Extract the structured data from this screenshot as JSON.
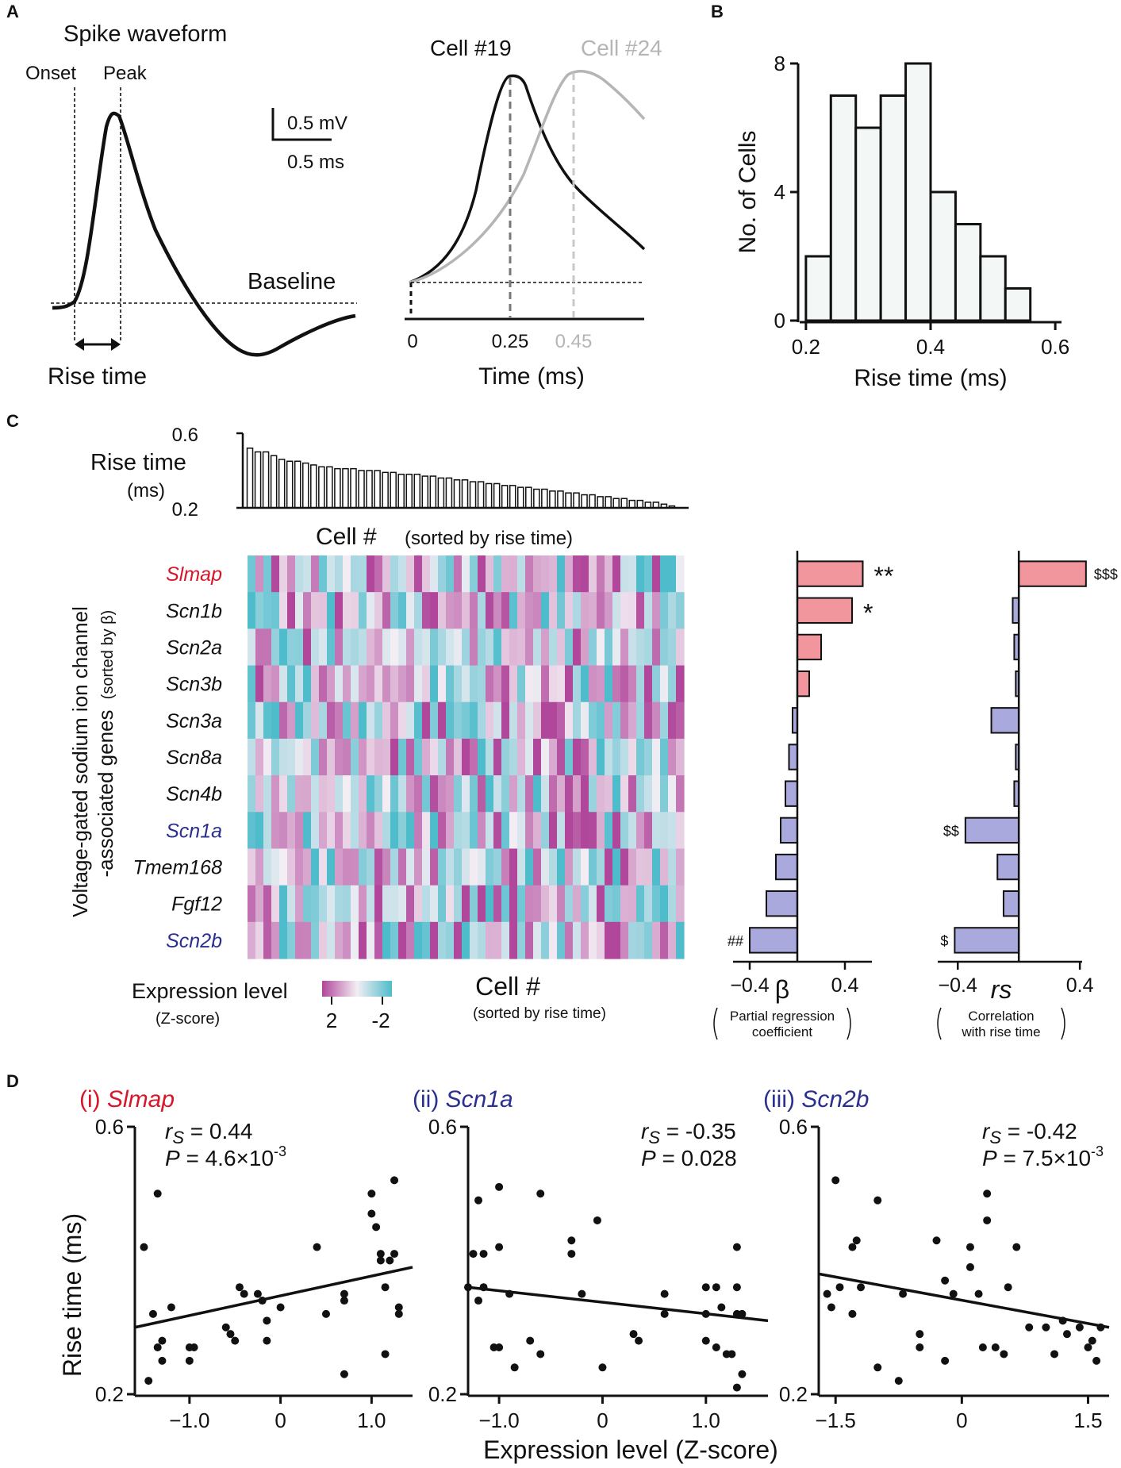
{
  "panels": {
    "A": {
      "letter": "A",
      "title": "Spike waveform",
      "onset_label": "Onset",
      "peak_label": "Peak",
      "baseline_label": "Baseline",
      "rise_time_label": "Rise time",
      "scale_voltage": "0.5 mV",
      "scale_time": "0.5 ms",
      "cell1_label": "Cell #19",
      "cell2_label": "Cell #24",
      "cell1_color": "#111111",
      "cell2_color": "#b5b5b5",
      "time_ticks": [
        "0",
        "0.25",
        "0.45"
      ],
      "time_xlabel": "Time (ms)"
    },
    "B": {
      "letter": "B"
    },
    "C": {
      "letter": "C",
      "bar_ylabel_1": "Rise time",
      "bar_ylabel_2": "(ms)",
      "bar_yticks": [
        "0.6",
        "0.2"
      ],
      "cell_label_top": "Cell #",
      "cell_label_top_sub": "(sorted by rise time)",
      "cell_label_bottom": "Cell #",
      "cell_label_bottom_sub": "(sorted by rise time)",
      "gene_axis_1": "Voltage-gated sodium ion channel",
      "gene_axis_2": "-associated genes",
      "gene_axis_sub": "(sorted by β)",
      "legend_title": "Expression level",
      "legend_sub": "(Z-score)",
      "legend_high": "2",
      "legend_low": "-2",
      "beta_xlabel": "β",
      "beta_caption_1": "Partial regression",
      "beta_caption_2": "coefficient",
      "rs_xlabel": "rs",
      "rs_caption_1": "Correlation",
      "rs_caption_2": "with rise time",
      "pos_color": "#f2969e",
      "neg_color": "#a9a9dd",
      "heat_high_color": "#b0479b",
      "heat_low_color": "#4fbccb"
    },
    "D": {
      "letter": "D",
      "ylabel": "Rise time (ms)",
      "xlabel": "Expression level (Z-score)"
    }
  },
  "chart_data": [
    {
      "id": "B",
      "type": "bar",
      "xlabel": "Rise time (ms)",
      "ylabel": "No. of Cells",
      "bin_edges": [
        0.2,
        0.24,
        0.28,
        0.32,
        0.36,
        0.4,
        0.44,
        0.48,
        0.52,
        0.56
      ],
      "values": [
        2,
        7,
        6,
        7,
        8,
        4,
        3,
        2,
        1
      ],
      "xlim": [
        0.19,
        0.61
      ],
      "ylim": [
        0,
        8
      ],
      "xticks": [
        0.2,
        0.4,
        0.6
      ],
      "yticks": [
        0,
        4,
        8
      ],
      "bar_fill": "#f3f7f5"
    },
    {
      "id": "C-bars",
      "type": "bar",
      "ylabel": "Rise time (ms)",
      "ylim": [
        0.2,
        0.6
      ],
      "values": [
        0.52,
        0.5,
        0.5,
        0.48,
        0.46,
        0.45,
        0.45,
        0.44,
        0.43,
        0.42,
        0.42,
        0.41,
        0.41,
        0.41,
        0.4,
        0.4,
        0.4,
        0.39,
        0.39,
        0.38,
        0.38,
        0.38,
        0.37,
        0.37,
        0.36,
        0.36,
        0.35,
        0.35,
        0.34,
        0.34,
        0.33,
        0.33,
        0.32,
        0.32,
        0.31,
        0.31,
        0.3,
        0.3,
        0.29,
        0.29,
        0.28,
        0.28,
        0.27,
        0.27,
        0.26,
        0.26,
        0.25,
        0.25,
        0.24,
        0.24,
        0.23,
        0.23,
        0.22,
        0.21,
        0.2
      ]
    },
    {
      "id": "C-heatmap",
      "type": "heatmap",
      "genes": [
        "Slmap",
        "Scn1b",
        "Scn2a",
        "Scn3b",
        "Scn3a",
        "Scn8a",
        "Scn4b",
        "Scn1a",
        "Tmem168",
        "Fgf12",
        "Scn2b"
      ],
      "gene_colors": [
        "#d7162a",
        "#111111",
        "#111111",
        "#111111",
        "#111111",
        "#111111",
        "#111111",
        "#2b2f8f",
        "#111111",
        "#111111",
        "#2b2f8f"
      ],
      "n_cells": 55,
      "zlim": [
        -2,
        2
      ],
      "seeds": [
        11,
        23,
        37,
        41,
        53,
        67,
        71,
        83,
        97,
        101,
        113
      ]
    },
    {
      "id": "C-beta",
      "type": "bar",
      "orientation": "horizontal",
      "categories": [
        "Slmap",
        "Scn1b",
        "Scn2a",
        "Scn3b",
        "Scn3a",
        "Scn8a",
        "Scn4b",
        "Scn1a",
        "Tmem168",
        "Fgf12",
        "Scn2b"
      ],
      "values": [
        0.55,
        0.46,
        0.2,
        0.1,
        -0.04,
        -0.07,
        -0.1,
        -0.14,
        -0.18,
        -0.26,
        -0.4
      ],
      "annotations": [
        "**",
        "*",
        "",
        "",
        "",
        "",
        "",
        "",
        "",
        "",
        "##"
      ],
      "xlim": [
        -0.5,
        0.8
      ],
      "xticks": [
        "−0.4",
        "0.4"
      ]
    },
    {
      "id": "C-rs",
      "type": "bar",
      "orientation": "horizontal",
      "categories": [
        "Slmap",
        "Scn1b",
        "Scn2a",
        "Scn3b",
        "Scn3a",
        "Scn8a",
        "Scn4b",
        "Scn1a",
        "Tmem168",
        "Fgf12",
        "Scn2b"
      ],
      "values": [
        0.44,
        -0.04,
        -0.03,
        -0.02,
        -0.18,
        -0.02,
        -0.03,
        -0.35,
        -0.14,
        -0.1,
        -0.42
      ],
      "annotations": [
        "$$$",
        "",
        "",
        "",
        "",
        "",
        "",
        "$$",
        "",
        "",
        "$"
      ],
      "xlim": [
        -0.5,
        0.55
      ],
      "xticks": [
        "−0.4",
        "0.4"
      ]
    },
    {
      "id": "D-i",
      "type": "scatter",
      "title_prefix": "(i) ",
      "gene": "Slmap",
      "gene_color": "#d7162a",
      "rs_text": "= 0.44",
      "p_text": "= 4.6×10",
      "p_exp": "-3",
      "xlim": [
        -1.6,
        1.45
      ],
      "ylim": [
        0.2,
        0.6
      ],
      "xticks": [
        -1.0,
        0.0,
        1.0
      ],
      "xtick_labels": [
        "−1.0",
        "0",
        "1.0"
      ],
      "yticks": [
        "0.6",
        "0.2"
      ],
      "fit": [
        [
          -1.6,
          0.3
        ],
        [
          1.45,
          0.39
        ]
      ],
      "points": [
        [
          -1.5,
          0.42
        ],
        [
          -1.4,
          0.32
        ],
        [
          -1.35,
          0.27
        ],
        [
          -1.3,
          0.28
        ],
        [
          -1.45,
          0.22
        ],
        [
          -1.3,
          0.25
        ],
        [
          -1.2,
          0.33
        ],
        [
          -1.0,
          0.27
        ],
        [
          -0.95,
          0.27
        ],
        [
          -1.0,
          0.25
        ],
        [
          -0.6,
          0.3
        ],
        [
          -0.55,
          0.29
        ],
        [
          -0.5,
          0.28
        ],
        [
          -0.45,
          0.36
        ],
        [
          -0.4,
          0.35
        ],
        [
          -0.25,
          0.35
        ],
        [
          -0.2,
          0.34
        ],
        [
          -0.15,
          0.31
        ],
        [
          -0.15,
          0.28
        ],
        [
          0.0,
          0.33
        ],
        [
          0.4,
          0.42
        ],
        [
          0.5,
          0.32
        ],
        [
          0.7,
          0.35
        ],
        [
          0.7,
          0.34
        ],
        [
          0.7,
          0.23
        ],
        [
          1.0,
          0.5
        ],
        [
          1.0,
          0.47
        ],
        [
          1.05,
          0.45
        ],
        [
          1.1,
          0.41
        ],
        [
          1.1,
          0.4
        ],
        [
          1.15,
          0.36
        ],
        [
          1.2,
          0.4
        ],
        [
          1.25,
          0.41
        ],
        [
          1.3,
          0.33
        ],
        [
          1.3,
          0.32
        ],
        [
          1.15,
          0.26
        ],
        [
          1.25,
          0.52
        ],
        [
          -1.35,
          0.5
        ]
      ]
    },
    {
      "id": "D-ii",
      "type": "scatter",
      "title_prefix": "(ii) ",
      "gene": "Scn1a",
      "gene_color": "#2b2f8f",
      "rs_text": "= -0.35",
      "p_text": "= 0.028",
      "p_exp": "",
      "xlim": [
        -1.3,
        1.6
      ],
      "ylim": [
        0.2,
        0.6
      ],
      "xticks": [
        -1.0,
        0.0,
        1.0
      ],
      "xtick_labels": [
        "−1.0",
        "0",
        "1.0"
      ],
      "yticks": [
        "0.6",
        "0.2"
      ],
      "fit": [
        [
          -1.3,
          0.36
        ],
        [
          1.6,
          0.31
        ]
      ],
      "points": [
        [
          -1.3,
          0.36
        ],
        [
          -1.25,
          0.41
        ],
        [
          -1.2,
          0.49
        ],
        [
          -1.15,
          0.41
        ],
        [
          -1.15,
          0.36
        ],
        [
          -1.2,
          0.34
        ],
        [
          -1.0,
          0.42
        ],
        [
          -1.0,
          0.51
        ],
        [
          -1.05,
          0.27
        ],
        [
          -1.0,
          0.27
        ],
        [
          -0.9,
          0.35
        ],
        [
          -0.85,
          0.24
        ],
        [
          -0.7,
          0.28
        ],
        [
          -0.6,
          0.26
        ],
        [
          -0.6,
          0.5
        ],
        [
          -0.3,
          0.41
        ],
        [
          -0.3,
          0.43
        ],
        [
          -0.2,
          0.35
        ],
        [
          -0.05,
          0.46
        ],
        [
          0.0,
          0.24
        ],
        [
          0.3,
          0.29
        ],
        [
          0.35,
          0.28
        ],
        [
          0.6,
          0.35
        ],
        [
          0.6,
          0.32
        ],
        [
          1.0,
          0.32
        ],
        [
          1.0,
          0.36
        ],
        [
          1.0,
          0.28
        ],
        [
          1.1,
          0.36
        ],
        [
          1.1,
          0.27
        ],
        [
          1.15,
          0.33
        ],
        [
          1.2,
          0.26
        ],
        [
          1.3,
          0.42
        ],
        [
          1.3,
          0.36
        ],
        [
          1.3,
          0.32
        ],
        [
          1.25,
          0.26
        ],
        [
          1.35,
          0.32
        ],
        [
          1.35,
          0.23
        ],
        [
          1.3,
          0.21
        ]
      ]
    },
    {
      "id": "D-iii",
      "type": "scatter",
      "title_prefix": "(iii) ",
      "gene": "Scn2b",
      "gene_color": "#2b2f8f",
      "rs_text": "= -0.42",
      "p_text": "= 7.5×10",
      "p_exp": "-3",
      "xlim": [
        -1.7,
        1.75
      ],
      "ylim": [
        0.2,
        0.6
      ],
      "xticks": [
        -1.5,
        0.0,
        1.5
      ],
      "xtick_labels": [
        "−1.5",
        "0",
        "1.5"
      ],
      "yticks": [
        "0.6",
        "0.2"
      ],
      "fit": [
        [
          -1.7,
          0.38
        ],
        [
          1.75,
          0.3
        ]
      ],
      "points": [
        [
          -1.6,
          0.35
        ],
        [
          -1.55,
          0.33
        ],
        [
          -1.5,
          0.52
        ],
        [
          -1.45,
          0.36
        ],
        [
          -1.3,
          0.42
        ],
        [
          -1.3,
          0.32
        ],
        [
          -1.25,
          0.43
        ],
        [
          -1.2,
          0.36
        ],
        [
          -1.0,
          0.49
        ],
        [
          -1.0,
          0.24
        ],
        [
          -0.7,
          0.35
        ],
        [
          -0.5,
          0.29
        ],
        [
          -0.5,
          0.27
        ],
        [
          -0.3,
          0.43
        ],
        [
          -0.2,
          0.25
        ],
        [
          -0.2,
          0.37
        ],
        [
          -0.1,
          0.35
        ],
        [
          0.1,
          0.42
        ],
        [
          0.1,
          0.39
        ],
        [
          0.2,
          0.35
        ],
        [
          0.25,
          0.27
        ],
        [
          0.3,
          0.5
        ],
        [
          0.3,
          0.46
        ],
        [
          0.4,
          0.27
        ],
        [
          0.5,
          0.26
        ],
        [
          0.55,
          0.36
        ],
        [
          0.65,
          0.42
        ],
        [
          0.8,
          0.3
        ],
        [
          1.0,
          0.3
        ],
        [
          1.1,
          0.26
        ],
        [
          1.2,
          0.31
        ],
        [
          1.25,
          0.29
        ],
        [
          1.4,
          0.3
        ],
        [
          1.5,
          0.27
        ],
        [
          1.55,
          0.28
        ],
        [
          1.6,
          0.25
        ],
        [
          1.65,
          0.3
        ],
        [
          -0.75,
          0.22
        ]
      ]
    }
  ]
}
